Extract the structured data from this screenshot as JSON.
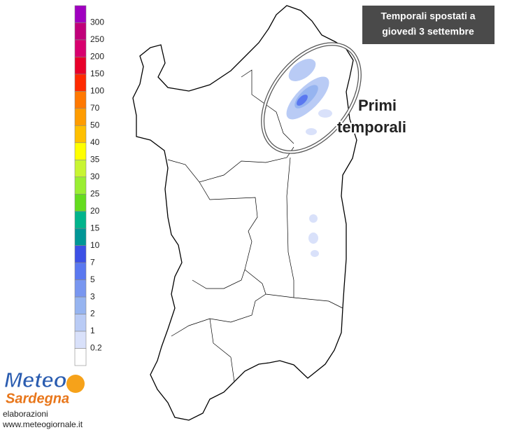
{
  "legend": {
    "labels": [
      "300",
      "250",
      "200",
      "150",
      "100",
      "70",
      "50",
      "40",
      "35",
      "30",
      "25",
      "20",
      "15",
      "10",
      "7",
      "5",
      "3",
      "2",
      "1",
      "0.2"
    ],
    "colors": [
      "#a000c0",
      "#c0007a",
      "#d8006e",
      "#e8002a",
      "#ff2a00",
      "#ff7800",
      "#ff9c00",
      "#ffc000",
      "#ffff00",
      "#c8f532",
      "#9aee32",
      "#64dc1e",
      "#00b48c",
      "#009696",
      "#3c50e6",
      "#5a78f0",
      "#7896f0",
      "#96b4f0",
      "#b9cbf5",
      "#d9e1fa",
      "#ffffff"
    ]
  },
  "title_box": {
    "lines": [
      "Temporali spostati a",
      "giovedì 3 settembre"
    ]
  },
  "annotation": {
    "lines": [
      "Primi",
      "temporali"
    ]
  },
  "logo": {
    "line1": "Meteo",
    "line2": "Sardegna"
  },
  "credits": {
    "line1": "elaborazioni",
    "line2": "www.meteogiornale.it"
  }
}
